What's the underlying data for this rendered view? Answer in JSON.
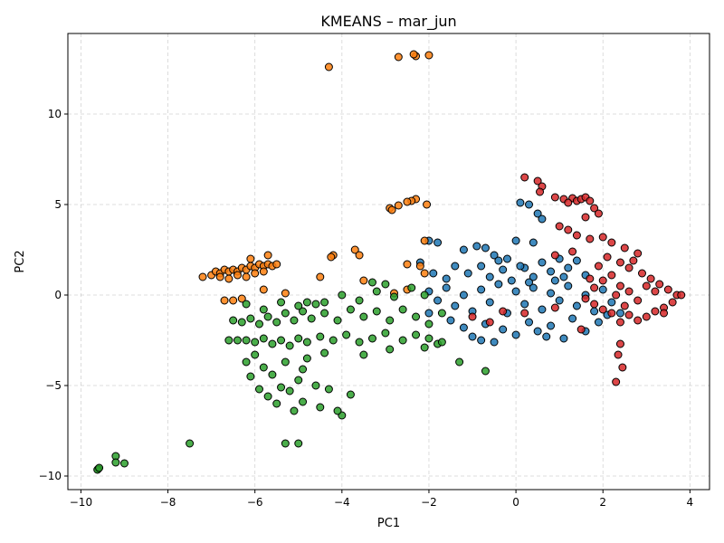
{
  "chart_data": {
    "type": "scatter",
    "title": "KMEANS – mar_jun",
    "xlabel": "PC1",
    "ylabel": "PC2",
    "xlim": [
      -10.3,
      4.45
    ],
    "ylim": [
      -10.75,
      14.45
    ],
    "xticks": [
      -10,
      -8,
      -6,
      -4,
      -2,
      0,
      2,
      4
    ],
    "yticks": [
      -10,
      -5,
      0,
      5,
      10
    ],
    "xtick_labels": [
      "−10",
      "−8",
      "−6",
      "−4",
      "−2",
      "0",
      "2",
      "4"
    ],
    "ytick_labels": [
      "−10",
      "−5",
      "0",
      "5",
      "10"
    ],
    "grid": true,
    "legend": "none",
    "series": [
      {
        "color": "#1f77b4",
        "points": [
          [
            -2.0,
            3.0
          ],
          [
            -1.8,
            2.9
          ],
          [
            -1.2,
            2.5
          ],
          [
            -0.9,
            2.7
          ],
          [
            -0.7,
            2.6
          ],
          [
            -0.5,
            2.2
          ],
          [
            -0.2,
            2.0
          ],
          [
            0.1,
            5.1
          ],
          [
            0.3,
            5.0
          ],
          [
            0.5,
            4.5
          ],
          [
            0.6,
            4.2
          ],
          [
            0.0,
            3.0
          ],
          [
            0.4,
            2.9
          ],
          [
            -2.2,
            1.8
          ],
          [
            -1.9,
            1.2
          ],
          [
            -1.6,
            0.9
          ],
          [
            -1.4,
            1.6
          ],
          [
            -1.1,
            1.2
          ],
          [
            -0.8,
            1.6
          ],
          [
            -0.6,
            1.0
          ],
          [
            -0.3,
            1.4
          ],
          [
            -0.1,
            0.8
          ],
          [
            0.2,
            1.5
          ],
          [
            0.4,
            1.0
          ],
          [
            0.6,
            1.8
          ],
          [
            0.8,
            1.3
          ],
          [
            1.0,
            2.0
          ],
          [
            1.2,
            1.5
          ],
          [
            1.4,
            1.9
          ],
          [
            1.6,
            1.1
          ],
          [
            -2.0,
            0.2
          ],
          [
            -1.8,
            -0.3
          ],
          [
            -1.6,
            0.4
          ],
          [
            -1.4,
            -0.6
          ],
          [
            -1.2,
            0.0
          ],
          [
            -1.0,
            -0.9
          ],
          [
            -0.8,
            0.3
          ],
          [
            -0.6,
            -0.4
          ],
          [
            -0.4,
            0.6
          ],
          [
            -0.2,
            -1.0
          ],
          [
            0.0,
            0.2
          ],
          [
            0.2,
            -0.5
          ],
          [
            0.4,
            0.4
          ],
          [
            0.6,
            -0.8
          ],
          [
            0.8,
            0.1
          ],
          [
            1.0,
            -0.3
          ],
          [
            1.2,
            0.5
          ],
          [
            1.4,
            -0.6
          ],
          [
            1.6,
            0.0
          ],
          [
            1.8,
            -0.9
          ],
          [
            2.0,
            0.3
          ],
          [
            2.2,
            -0.4
          ],
          [
            2.4,
            -1.0
          ],
          [
            -1.5,
            -1.4
          ],
          [
            -1.2,
            -1.8
          ],
          [
            -1.0,
            -2.3
          ],
          [
            -0.7,
            -1.6
          ],
          [
            -0.5,
            -2.6
          ],
          [
            -0.3,
            -1.9
          ],
          [
            0.0,
            -2.2
          ],
          [
            0.3,
            -1.5
          ],
          [
            0.5,
            -2.0
          ],
          [
            0.8,
            -1.7
          ],
          [
            1.1,
            -2.4
          ],
          [
            1.3,
            -1.3
          ],
          [
            1.6,
            -2.0
          ],
          [
            1.9,
            -1.5
          ],
          [
            2.1,
            -1.1
          ],
          [
            -2.0,
            -1.0
          ],
          [
            -0.8,
            -2.5
          ],
          [
            0.7,
            -2.3
          ],
          [
            0.1,
            1.6
          ],
          [
            -0.4,
            1.9
          ],
          [
            0.9,
            0.8
          ],
          [
            1.1,
            1.0
          ],
          [
            0.3,
            0.7
          ]
        ]
      },
      {
        "color": "#ff7f0e",
        "points": [
          [
            -4.3,
            12.6
          ],
          [
            -2.7,
            13.15
          ],
          [
            -2.3,
            13.2
          ],
          [
            -2.35,
            13.3
          ],
          [
            -2.0,
            13.25
          ],
          [
            -2.3,
            5.3
          ],
          [
            -2.4,
            5.2
          ],
          [
            -2.5,
            5.15
          ],
          [
            -2.05,
            5.0
          ],
          [
            -2.7,
            4.95
          ],
          [
            -2.9,
            4.8
          ],
          [
            -2.85,
            4.7
          ],
          [
            -2.1,
            3.0
          ],
          [
            -3.7,
            2.5
          ],
          [
            -3.6,
            2.2
          ],
          [
            -4.2,
            2.2
          ],
          [
            -4.25,
            2.1
          ],
          [
            -2.5,
            1.7
          ],
          [
            -2.2,
            1.6
          ],
          [
            -2.1,
            1.2
          ],
          [
            -4.5,
            1.0
          ],
          [
            -3.5,
            0.8
          ],
          [
            -2.5,
            0.3
          ],
          [
            -2.8,
            0.1
          ],
          [
            -5.3,
            0.1
          ],
          [
            -5.8,
            0.3
          ],
          [
            -6.3,
            -0.2
          ],
          [
            -6.5,
            -0.3
          ],
          [
            -6.7,
            -0.3
          ],
          [
            -7.2,
            1.0
          ],
          [
            -7.0,
            1.1
          ],
          [
            -6.9,
            1.3
          ],
          [
            -6.8,
            1.2
          ],
          [
            -6.7,
            1.4
          ],
          [
            -6.6,
            1.3
          ],
          [
            -6.5,
            1.4
          ],
          [
            -6.4,
            1.3
          ],
          [
            -6.3,
            1.5
          ],
          [
            -6.2,
            1.4
          ],
          [
            -6.1,
            1.6
          ],
          [
            -6.0,
            1.5
          ],
          [
            -5.9,
            1.7
          ],
          [
            -5.8,
            1.6
          ],
          [
            -5.7,
            1.7
          ],
          [
            -5.6,
            1.6
          ],
          [
            -5.5,
            1.7
          ],
          [
            -6.8,
            1.0
          ],
          [
            -6.6,
            0.9
          ],
          [
            -6.4,
            1.1
          ],
          [
            -6.2,
            1.0
          ],
          [
            -6.0,
            1.2
          ],
          [
            -5.8,
            1.3
          ],
          [
            -5.7,
            2.2
          ],
          [
            -6.1,
            2.0
          ]
        ]
      },
      {
        "color": "#2ca02c",
        "points": [
          [
            -9.6,
            -9.6
          ],
          [
            -9.62,
            -9.65
          ],
          [
            -9.58,
            -9.55
          ],
          [
            -9.2,
            -8.9
          ],
          [
            -9.2,
            -9.25
          ],
          [
            -9.0,
            -9.3
          ],
          [
            -7.5,
            -8.2
          ],
          [
            -5.3,
            -8.2
          ],
          [
            -5.0,
            -8.2
          ],
          [
            -4.0,
            -6.65
          ],
          [
            -4.1,
            -6.4
          ],
          [
            -4.5,
            -6.2
          ],
          [
            -5.5,
            -6.0
          ],
          [
            -5.1,
            -6.4
          ],
          [
            -4.9,
            -5.9
          ],
          [
            -5.7,
            -5.6
          ],
          [
            -3.8,
            -5.5
          ],
          [
            -4.3,
            -5.2
          ],
          [
            -5.9,
            -5.2
          ],
          [
            -5.4,
            -5.1
          ],
          [
            -5.2,
            -5.3
          ],
          [
            -6.1,
            -4.5
          ],
          [
            -5.6,
            -4.4
          ],
          [
            -5.0,
            -4.7
          ],
          [
            -4.6,
            -5.0
          ],
          [
            -4.9,
            -4.1
          ],
          [
            -5.8,
            -4.0
          ],
          [
            -5.3,
            -3.7
          ],
          [
            -6.2,
            -3.7
          ],
          [
            -6.0,
            -3.3
          ],
          [
            -4.8,
            -3.5
          ],
          [
            -4.4,
            -3.2
          ],
          [
            -3.5,
            -3.3
          ],
          [
            -2.9,
            -3.0
          ],
          [
            -2.1,
            -2.9
          ],
          [
            -1.8,
            -2.7
          ],
          [
            -1.3,
            -3.7
          ],
          [
            -0.7,
            -4.2
          ],
          [
            -6.6,
            -2.5
          ],
          [
            -6.4,
            -2.5
          ],
          [
            -6.2,
            -2.5
          ],
          [
            -6.0,
            -2.6
          ],
          [
            -5.8,
            -2.4
          ],
          [
            -5.6,
            -2.7
          ],
          [
            -5.4,
            -2.5
          ],
          [
            -5.2,
            -2.8
          ],
          [
            -5.0,
            -2.4
          ],
          [
            -4.8,
            -2.6
          ],
          [
            -4.5,
            -2.3
          ],
          [
            -4.2,
            -2.5
          ],
          [
            -3.9,
            -2.2
          ],
          [
            -3.6,
            -2.6
          ],
          [
            -3.3,
            -2.4
          ],
          [
            -3.0,
            -2.1
          ],
          [
            -2.6,
            -2.5
          ],
          [
            -2.3,
            -2.2
          ],
          [
            -2.0,
            -2.4
          ],
          [
            -1.7,
            -2.6
          ],
          [
            -6.5,
            -1.4
          ],
          [
            -6.3,
            -1.5
          ],
          [
            -6.1,
            -1.3
          ],
          [
            -5.9,
            -1.6
          ],
          [
            -5.7,
            -1.2
          ],
          [
            -5.5,
            -1.5
          ],
          [
            -5.3,
            -1.0
          ],
          [
            -5.1,
            -1.4
          ],
          [
            -4.9,
            -0.9
          ],
          [
            -4.7,
            -1.3
          ],
          [
            -4.4,
            -1.0
          ],
          [
            -4.1,
            -1.4
          ],
          [
            -3.8,
            -0.8
          ],
          [
            -3.5,
            -1.2
          ],
          [
            -3.2,
            -0.9
          ],
          [
            -2.9,
            -1.4
          ],
          [
            -2.6,
            -0.8
          ],
          [
            -2.3,
            -1.2
          ],
          [
            -2.0,
            -1.6
          ],
          [
            -1.7,
            -1.0
          ],
          [
            -6.2,
            -0.5
          ],
          [
            -5.8,
            -0.8
          ],
          [
            -5.4,
            -0.4
          ],
          [
            -5.0,
            -0.6
          ],
          [
            -4.8,
            -0.4
          ],
          [
            -4.6,
            -0.5
          ],
          [
            -4.4,
            -0.4
          ],
          [
            -4.0,
            0.0
          ],
          [
            -3.6,
            -0.3
          ],
          [
            -3.2,
            0.2
          ],
          [
            -2.8,
            -0.1
          ],
          [
            -3.0,
            0.6
          ],
          [
            -2.4,
            0.4
          ],
          [
            -2.1,
            0.0
          ],
          [
            -3.3,
            0.7
          ]
        ]
      },
      {
        "color": "#d62728",
        "points": [
          [
            0.2,
            6.5
          ],
          [
            0.5,
            6.3
          ],
          [
            0.6,
            6.0
          ],
          [
            0.55,
            5.7
          ],
          [
            0.9,
            5.4
          ],
          [
            1.1,
            5.3
          ],
          [
            1.3,
            5.35
          ],
          [
            1.4,
            5.2
          ],
          [
            1.5,
            5.3
          ],
          [
            1.6,
            5.4
          ],
          [
            1.7,
            5.2
          ],
          [
            1.2,
            5.1
          ],
          [
            1.8,
            4.8
          ],
          [
            1.9,
            4.5
          ],
          [
            1.6,
            4.3
          ],
          [
            1.0,
            3.8
          ],
          [
            1.2,
            3.6
          ],
          [
            1.4,
            3.3
          ],
          [
            1.7,
            3.1
          ],
          [
            2.0,
            3.2
          ],
          [
            2.2,
            2.9
          ],
          [
            2.5,
            2.6
          ],
          [
            2.8,
            2.3
          ],
          [
            2.4,
            1.8
          ],
          [
            2.6,
            1.5
          ],
          [
            2.9,
            1.2
          ],
          [
            3.1,
            0.9
          ],
          [
            3.3,
            0.6
          ],
          [
            3.5,
            0.3
          ],
          [
            3.7,
            0.0
          ],
          [
            3.8,
            0.0
          ],
          [
            3.6,
            -0.4
          ],
          [
            3.4,
            -0.7
          ],
          [
            3.2,
            -0.9
          ],
          [
            3.0,
            -1.2
          ],
          [
            2.8,
            -1.4
          ],
          [
            2.6,
            -1.1
          ],
          [
            2.4,
            -1.5
          ],
          [
            2.2,
            -1.0
          ],
          [
            2.0,
            -0.8
          ],
          [
            1.8,
            -0.5
          ],
          [
            1.6,
            -0.2
          ],
          [
            1.8,
            0.4
          ],
          [
            2.0,
            0.8
          ],
          [
            2.2,
            1.1
          ],
          [
            2.4,
            0.5
          ],
          [
            2.6,
            0.2
          ],
          [
            2.8,
            -0.3
          ],
          [
            3.0,
            0.5
          ],
          [
            3.2,
            0.2
          ],
          [
            1.9,
            1.6
          ],
          [
            2.1,
            2.1
          ],
          [
            2.3,
            0.0
          ],
          [
            2.5,
            -0.6
          ],
          [
            1.7,
            0.9
          ],
          [
            -1.0,
            -1.2
          ],
          [
            -0.6,
            -1.5
          ],
          [
            -0.3,
            -0.9
          ],
          [
            0.2,
            -1.0
          ],
          [
            2.4,
            -2.7
          ],
          [
            2.35,
            -3.3
          ],
          [
            2.45,
            -4.0
          ],
          [
            2.3,
            -4.8
          ],
          [
            1.5,
            -1.9
          ],
          [
            0.9,
            -0.7
          ],
          [
            3.4,
            -1.0
          ],
          [
            2.7,
            1.9
          ],
          [
            1.3,
            2.4
          ],
          [
            0.9,
            2.2
          ]
        ]
      }
    ]
  }
}
